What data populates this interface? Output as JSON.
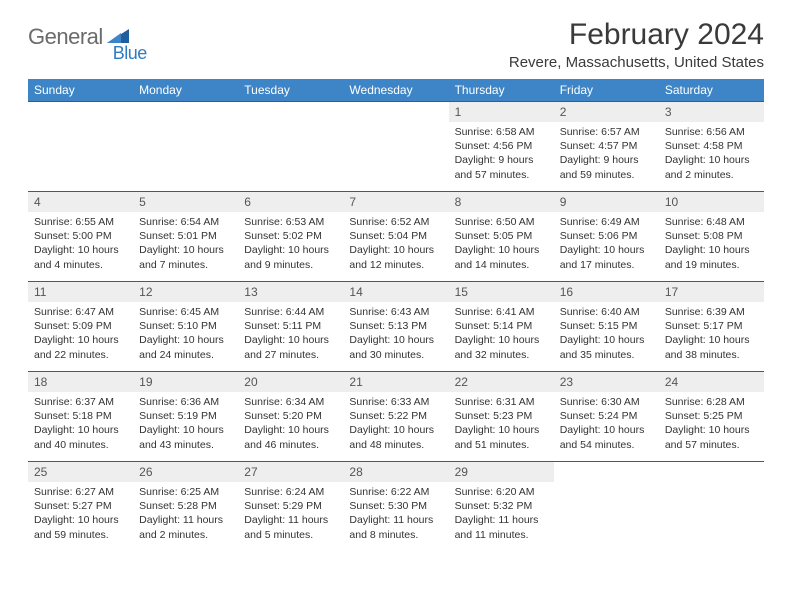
{
  "logo": {
    "word1": "General",
    "word2": "Blue"
  },
  "title": "February 2024",
  "location": "Revere, Massachusetts, United States",
  "colors": {
    "header_bg": "#3d85c6",
    "header_text": "#ffffff",
    "daynum_bg": "#eeeeee",
    "rule": "#2f5f8f",
    "logo_gray": "#6b6b6b",
    "logo_blue": "#2e7cc2"
  },
  "weekdays": [
    "Sunday",
    "Monday",
    "Tuesday",
    "Wednesday",
    "Thursday",
    "Friday",
    "Saturday"
  ],
  "weeks": [
    [
      null,
      null,
      null,
      null,
      {
        "n": "1",
        "sr": "6:58 AM",
        "ss": "4:56 PM",
        "dl": "9 hours and 57 minutes."
      },
      {
        "n": "2",
        "sr": "6:57 AM",
        "ss": "4:57 PM",
        "dl": "9 hours and 59 minutes."
      },
      {
        "n": "3",
        "sr": "6:56 AM",
        "ss": "4:58 PM",
        "dl": "10 hours and 2 minutes."
      }
    ],
    [
      {
        "n": "4",
        "sr": "6:55 AM",
        "ss": "5:00 PM",
        "dl": "10 hours and 4 minutes."
      },
      {
        "n": "5",
        "sr": "6:54 AM",
        "ss": "5:01 PM",
        "dl": "10 hours and 7 minutes."
      },
      {
        "n": "6",
        "sr": "6:53 AM",
        "ss": "5:02 PM",
        "dl": "10 hours and 9 minutes."
      },
      {
        "n": "7",
        "sr": "6:52 AM",
        "ss": "5:04 PM",
        "dl": "10 hours and 12 minutes."
      },
      {
        "n": "8",
        "sr": "6:50 AM",
        "ss": "5:05 PM",
        "dl": "10 hours and 14 minutes."
      },
      {
        "n": "9",
        "sr": "6:49 AM",
        "ss": "5:06 PM",
        "dl": "10 hours and 17 minutes."
      },
      {
        "n": "10",
        "sr": "6:48 AM",
        "ss": "5:08 PM",
        "dl": "10 hours and 19 minutes."
      }
    ],
    [
      {
        "n": "11",
        "sr": "6:47 AM",
        "ss": "5:09 PM",
        "dl": "10 hours and 22 minutes."
      },
      {
        "n": "12",
        "sr": "6:45 AM",
        "ss": "5:10 PM",
        "dl": "10 hours and 24 minutes."
      },
      {
        "n": "13",
        "sr": "6:44 AM",
        "ss": "5:11 PM",
        "dl": "10 hours and 27 minutes."
      },
      {
        "n": "14",
        "sr": "6:43 AM",
        "ss": "5:13 PM",
        "dl": "10 hours and 30 minutes."
      },
      {
        "n": "15",
        "sr": "6:41 AM",
        "ss": "5:14 PM",
        "dl": "10 hours and 32 minutes."
      },
      {
        "n": "16",
        "sr": "6:40 AM",
        "ss": "5:15 PM",
        "dl": "10 hours and 35 minutes."
      },
      {
        "n": "17",
        "sr": "6:39 AM",
        "ss": "5:17 PM",
        "dl": "10 hours and 38 minutes."
      }
    ],
    [
      {
        "n": "18",
        "sr": "6:37 AM",
        "ss": "5:18 PM",
        "dl": "10 hours and 40 minutes."
      },
      {
        "n": "19",
        "sr": "6:36 AM",
        "ss": "5:19 PM",
        "dl": "10 hours and 43 minutes."
      },
      {
        "n": "20",
        "sr": "6:34 AM",
        "ss": "5:20 PM",
        "dl": "10 hours and 46 minutes."
      },
      {
        "n": "21",
        "sr": "6:33 AM",
        "ss": "5:22 PM",
        "dl": "10 hours and 48 minutes."
      },
      {
        "n": "22",
        "sr": "6:31 AM",
        "ss": "5:23 PM",
        "dl": "10 hours and 51 minutes."
      },
      {
        "n": "23",
        "sr": "6:30 AM",
        "ss": "5:24 PM",
        "dl": "10 hours and 54 minutes."
      },
      {
        "n": "24",
        "sr": "6:28 AM",
        "ss": "5:25 PM",
        "dl": "10 hours and 57 minutes."
      }
    ],
    [
      {
        "n": "25",
        "sr": "6:27 AM",
        "ss": "5:27 PM",
        "dl": "10 hours and 59 minutes."
      },
      {
        "n": "26",
        "sr": "6:25 AM",
        "ss": "5:28 PM",
        "dl": "11 hours and 2 minutes."
      },
      {
        "n": "27",
        "sr": "6:24 AM",
        "ss": "5:29 PM",
        "dl": "11 hours and 5 minutes."
      },
      {
        "n": "28",
        "sr": "6:22 AM",
        "ss": "5:30 PM",
        "dl": "11 hours and 8 minutes."
      },
      {
        "n": "29",
        "sr": "6:20 AM",
        "ss": "5:32 PM",
        "dl": "11 hours and 11 minutes."
      },
      null,
      null
    ]
  ],
  "labels": {
    "sunrise": "Sunrise:",
    "sunset": "Sunset:",
    "daylight": "Daylight:"
  }
}
